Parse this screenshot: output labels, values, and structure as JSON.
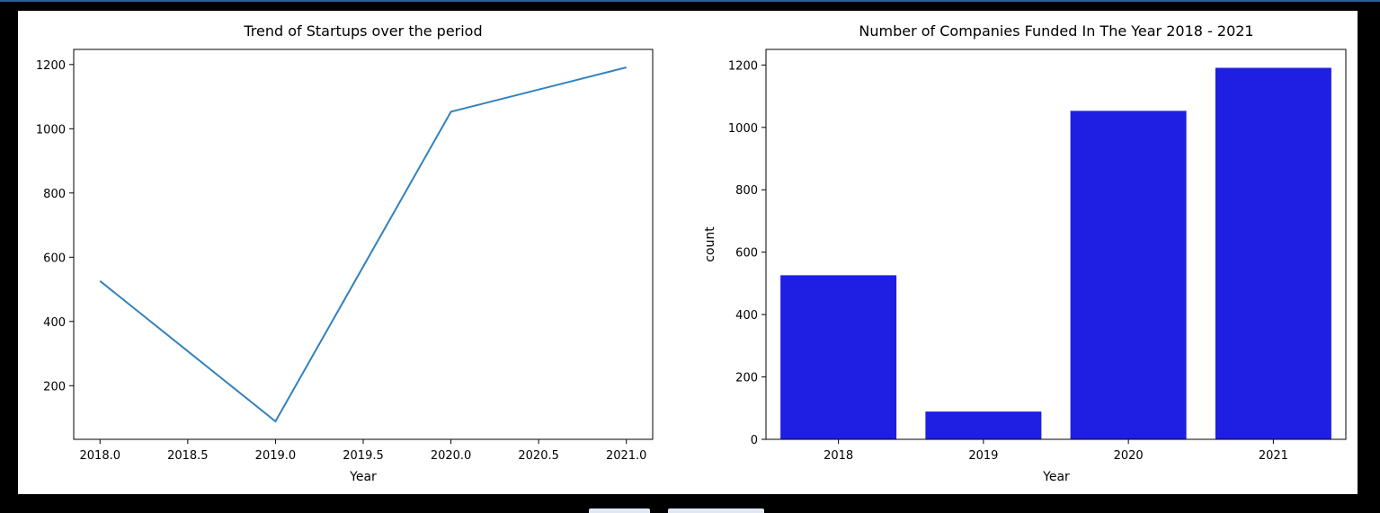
{
  "chart_data": [
    {
      "type": "line",
      "title": "Trend of Startups over the period",
      "xlabel": "Year",
      "ylabel": "",
      "x": [
        2018,
        2019,
        2020,
        2021
      ],
      "series": [
        {
          "values": [
            526,
            89,
            1053,
            1191
          ],
          "color": "#3282bd"
        }
      ],
      "xlim": [
        2017.85,
        2021.15
      ],
      "ylim": [
        33,
        1247
      ],
      "xticks": [
        2018.0,
        2018.5,
        2019.0,
        2019.5,
        2020.0,
        2020.5,
        2021.0
      ],
      "xtick_labels": [
        "2018.0",
        "2018.5",
        "2019.0",
        "2019.5",
        "2020.0",
        "2020.5",
        "2021.0"
      ],
      "yticks": [
        200,
        400,
        600,
        800,
        1000,
        1200
      ],
      "ytick_labels": [
        "200",
        "400",
        "600",
        "800",
        "1000",
        "1200"
      ],
      "grid": false
    },
    {
      "type": "bar",
      "title": "Number of Companies Funded In The Year 2018 - 2021",
      "xlabel": "Year",
      "ylabel": "count",
      "categories": [
        "2018",
        "2019",
        "2020",
        "2021"
      ],
      "values": [
        526,
        89,
        1053,
        1191
      ],
      "color": "#1f1fe4",
      "ylim": [
        0,
        1250
      ],
      "yticks": [
        0,
        200,
        400,
        600,
        800,
        1000,
        1200
      ],
      "ytick_labels": [
        "0",
        "200",
        "400",
        "600",
        "800",
        "1000",
        "1200"
      ],
      "grid": false
    }
  ]
}
